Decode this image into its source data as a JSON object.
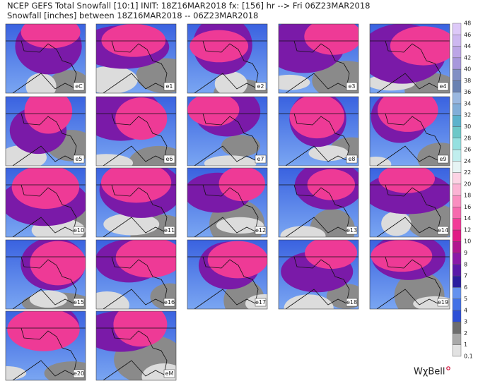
{
  "header": {
    "line1": "NCEP GEFS Total Snowfall [10:1] INIT: 18Z16MAR2018 fx: [156] hr --> Fri 06Z23MAR2018",
    "line2": "Snowfall [inches] between 18Z16MAR2018 -- 06Z23MAR2018"
  },
  "panels": [
    {
      "label": "eC"
    },
    {
      "label": "e1"
    },
    {
      "label": "e2"
    },
    {
      "label": "e3"
    },
    {
      "label": "e4"
    },
    {
      "label": "e5"
    },
    {
      "label": "e6"
    },
    {
      "label": "e7"
    },
    {
      "label": "e8"
    },
    {
      "label": "e9"
    },
    {
      "label": "e10"
    },
    {
      "label": "e11"
    },
    {
      "label": "e12"
    },
    {
      "label": "e13"
    },
    {
      "label": "e14"
    },
    {
      "label": "e15"
    },
    {
      "label": "e16"
    },
    {
      "label": "e17"
    },
    {
      "label": "e18"
    },
    {
      "label": "e19"
    },
    {
      "label": "e20"
    },
    {
      "label": "eM"
    }
  ],
  "colorbar": {
    "ticks": [
      0.1,
      1,
      2,
      3,
      4,
      5,
      6,
      7,
      8,
      9,
      10,
      12,
      14,
      16,
      18,
      20,
      22,
      24,
      26,
      28,
      30,
      32,
      34,
      36,
      38,
      40,
      42,
      44,
      46,
      48
    ],
    "colors": [
      "#e2e2e2",
      "#a9a9a9",
      "#6e6e6e",
      "#2d4fd6",
      "#4271e6",
      "#6592ee",
      "#2b1e9e",
      "#5a1aa8",
      "#8a1aa8",
      "#b0188f",
      "#e01c86",
      "#f23c98",
      "#f66aae",
      "#f98fc0",
      "#fbb4d4",
      "#fcd3e4",
      "#e6f4f4",
      "#c0eeee",
      "#94e0e0",
      "#6cc8c8",
      "#5cb2cc",
      "#82aed8",
      "#9ab8e0",
      "#6a82b2",
      "#8290c4",
      "#a898dc",
      "#bca6e6",
      "#cdb8f0",
      "#ddc9f8"
    ]
  },
  "logo": "WχBell"
}
